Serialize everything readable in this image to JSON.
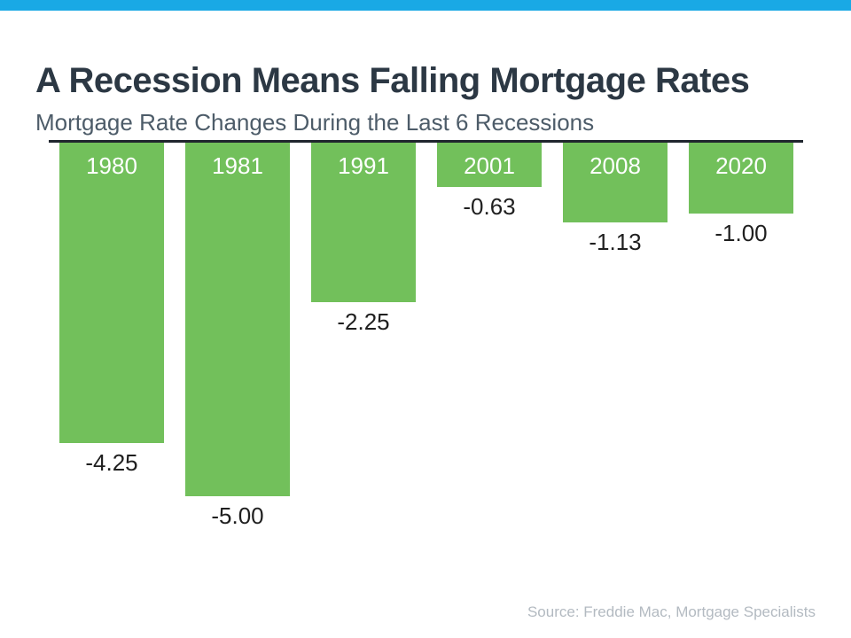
{
  "page": {
    "accent_bar_color": "#19a9e5",
    "background_color": "#ffffff"
  },
  "header": {
    "title": "A Recession Means Falling Mortgage Rates",
    "subtitle": "Mortgage Rate Changes During the Last 6 Recessions"
  },
  "footer": {
    "source": "Source: Freddie Mac, Mortgage Specialists"
  },
  "chart_data": {
    "type": "bar",
    "orientation": "vertical-negative",
    "title": "A Recession Means Falling Mortgage Rates",
    "subtitle": "Mortgage Rate Changes During the Last 6 Recessions",
    "categories": [
      "1980",
      "1981",
      "1991",
      "2001",
      "2008",
      "2020"
    ],
    "values": [
      -4.25,
      -5.0,
      -2.25,
      -0.63,
      -1.13,
      -1.0
    ],
    "value_labels": [
      "-4.25",
      "-5.00",
      "-2.25",
      "-0.63",
      "-1.13",
      "-1.00"
    ],
    "xlabel": "",
    "ylabel": "",
    "ylim": [
      -5.5,
      0
    ],
    "grid": false,
    "legend": false,
    "bar_color": "#72c05b",
    "baseline_color": "#20262e",
    "category_label_position": "inside-top",
    "value_label_position": "below-bar",
    "source": "Source: Freddie Mac, Mortgage Specialists"
  }
}
